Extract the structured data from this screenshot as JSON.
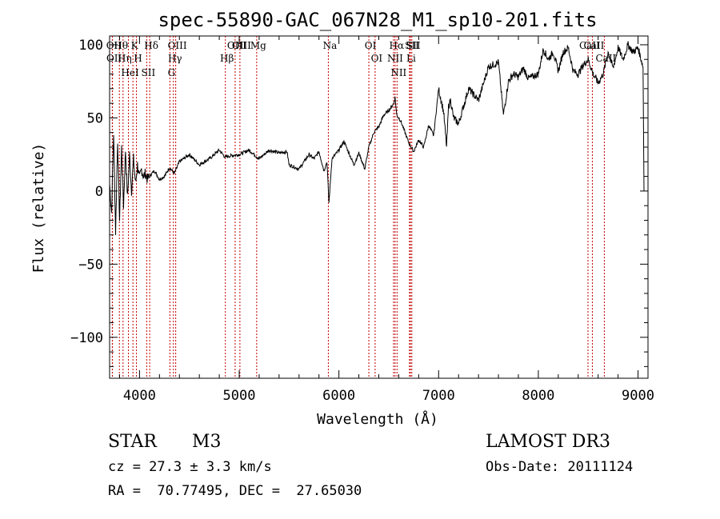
{
  "chart_data": {
    "type": "line",
    "title": "spec-55890-GAC_067N28_M1_sp10-201.fits",
    "xlabel": "Wavelength (Å)",
    "ylabel": "Flux (relative)",
    "xlim": [
      3700,
      9100
    ],
    "ylim": [
      -128,
      106
    ],
    "xticks": [
      4000,
      5000,
      6000,
      7000,
      8000,
      9000
    ],
    "xtick_labels": [
      "4000",
      "5000",
      "6000",
      "7000",
      "8000",
      "9000"
    ],
    "yticks": [
      -100,
      -50,
      0,
      50,
      100
    ],
    "ytick_labels": [
      "−100",
      "−50",
      "0",
      "50",
      "100"
    ],
    "series": [
      {
        "name": "flux",
        "x": [
          3700,
          3720,
          3740,
          3760,
          3780,
          3800,
          3820,
          3840,
          3860,
          3880,
          3900,
          3920,
          3940,
          3960,
          3980,
          4000,
          4020,
          4040,
          4060,
          4080,
          4100,
          4150,
          4200,
          4250,
          4300,
          4350,
          4400,
          4500,
          4600,
          4700,
          4800,
          4860,
          4900,
          5000,
          5100,
          5200,
          5300,
          5400,
          5480,
          5500,
          5600,
          5700,
          5750,
          5800,
          5850,
          5880,
          5900,
          5930,
          6000,
          6050,
          6100,
          6150,
          6200,
          6260,
          6300,
          6350,
          6400,
          6450,
          6500,
          6550,
          6563,
          6580,
          6620,
          6700,
          6750,
          6800,
          6850,
          6900,
          6950,
          7000,
          7050,
          7080,
          7100,
          7120,
          7150,
          7200,
          7300,
          7400,
          7500,
          7600,
          7650,
          7700,
          7750,
          7800,
          7850,
          7900,
          8000,
          8050,
          8100,
          8150,
          8200,
          8250,
          8300,
          8350,
          8400,
          8450,
          8500,
          8550,
          8600,
          8650,
          8700,
          8750,
          8800,
          8850,
          8900,
          8950,
          9000,
          9050,
          9060
        ],
        "y": [
          5,
          -15,
          40,
          -28,
          35,
          -20,
          30,
          -10,
          28,
          -5,
          25,
          0,
          22,
          5,
          18,
          8,
          15,
          10,
          12,
          8,
          10,
          14,
          8,
          10,
          16,
          12,
          20,
          25,
          18,
          22,
          28,
          23,
          24,
          25,
          28,
          22,
          28,
          26,
          27,
          18,
          15,
          25,
          22,
          27,
          14,
          20,
          -8,
          22,
          28,
          34,
          26,
          18,
          26,
          15,
          30,
          40,
          44,
          52,
          55,
          60,
          64,
          52,
          48,
          33,
          27,
          35,
          30,
          45,
          38,
          70,
          54,
          30,
          58,
          62,
          50,
          46,
          70,
          62,
          85,
          88,
          52,
          75,
          80,
          78,
          84,
          77,
          80,
          97,
          90,
          95,
          82,
          95,
          98,
          82,
          80,
          86,
          90,
          80,
          74,
          80,
          95,
          84,
          98,
          90,
          100,
          95,
          98,
          85,
          0
        ]
      }
    ],
    "line_ids": [
      {
        "label": "Hθ",
        "wavelength": 3798
      },
      {
        "label": "OII",
        "wavelength": 3727
      },
      {
        "label": "OII",
        "wavelength": 3729
      },
      {
        "label": "Hη",
        "wavelength": 3835
      },
      {
        "label": "K",
        "wavelength": 3934
      },
      {
        "label": "HeI",
        "wavelength": 3889
      },
      {
        "label": "H",
        "wavelength": 3969
      },
      {
        "label": "Hδ",
        "wavelength": 4102
      },
      {
        "label": "SII",
        "wavelength": 4072
      },
      {
        "label": "OIII",
        "wavelength": 4363
      },
      {
        "label": "Hγ",
        "wavelength": 4340
      },
      {
        "label": "G",
        "wavelength": 4305
      },
      {
        "label": "OIII",
        "wavelength": 4959
      },
      {
        "label": "OIII",
        "wavelength": 5007
      },
      {
        "label": "Hβ",
        "wavelength": 4861
      },
      {
        "label": "Mg",
        "wavelength": 5175
      },
      {
        "label": "Na",
        "wavelength": 5894
      },
      {
        "label": "OI",
        "wavelength": 6300
      },
      {
        "label": "OI",
        "wavelength": 6363
      },
      {
        "label": "Hα",
        "wavelength": 6563
      },
      {
        "label": "SII",
        "wavelength": 6717
      },
      {
        "label": "NII",
        "wavelength": 6548
      },
      {
        "label": "Li",
        "wavelength": 6708
      },
      {
        "label": "NII",
        "wavelength": 6583
      },
      {
        "label": "SII",
        "wavelength": 6731
      },
      {
        "label": "CaII",
        "wavelength": 8498
      },
      {
        "label": "CaII",
        "wavelength": 8542
      },
      {
        "label": "CaII",
        "wavelength": 8662
      }
    ]
  },
  "info": {
    "class": "STAR",
    "subclass": "M3",
    "survey": "LAMOST DR3",
    "cz": "cz = 27.3 ± 3.3 km/s",
    "obsdate": "Obs-Date: 20111124",
    "radec": "RA =  70.77495, DEC =  27.65030"
  }
}
